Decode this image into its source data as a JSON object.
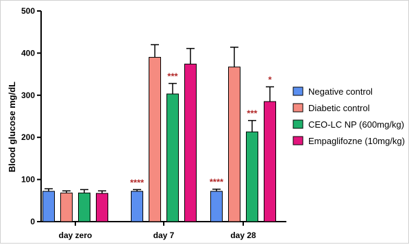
{
  "chart_data": {
    "type": "bar",
    "title": "",
    "xlabel": "",
    "ylabel": "Blood glucose mg/dL",
    "ylim": [
      0,
      500
    ],
    "yticks": [
      0,
      100,
      200,
      300,
      400,
      500
    ],
    "grid": false,
    "legend_position": "right",
    "categories": [
      "day zero",
      "day 7",
      "day 28"
    ],
    "series": [
      {
        "name": "Negative control",
        "color": "#5b8ff0",
        "values": [
          72,
          72,
          72
        ],
        "errors": [
          6,
          4,
          5
        ],
        "significance": [
          "",
          "****",
          "****"
        ]
      },
      {
        "name": "Diabetic control",
        "color": "#f58b80",
        "values": [
          68,
          390,
          367
        ],
        "errors": [
          5,
          30,
          47
        ],
        "significance": [
          "",
          "",
          ""
        ]
      },
      {
        "name": "CEO-LC NP (600mg/kg)",
        "color": "#1fb06b",
        "values": [
          68,
          303,
          213
        ],
        "errors": [
          8,
          25,
          27
        ],
        "significance": [
          "",
          "***",
          "***"
        ]
      },
      {
        "name": "Empaglifozne (10mg/kg)",
        "color": "#e3157d",
        "values": [
          67,
          374,
          285
        ],
        "errors": [
          6,
          37,
          35
        ],
        "significance": [
          "",
          "",
          "*"
        ]
      }
    ],
    "annotation_color": "#b22a2a"
  }
}
